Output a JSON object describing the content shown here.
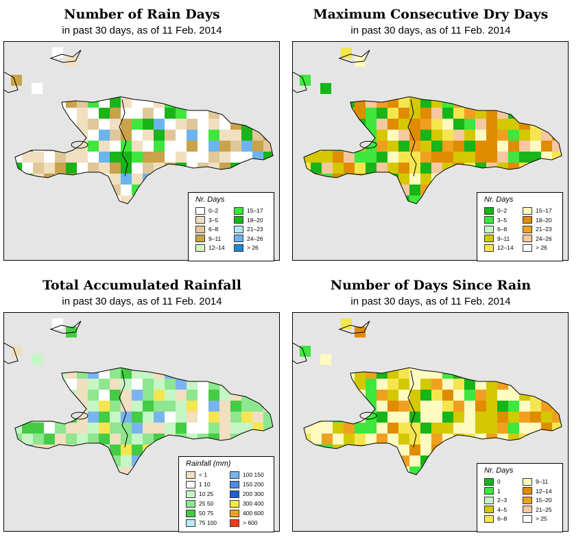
{
  "panels": [
    {
      "id": "rain-days",
      "title": "Number of Rain Days",
      "subtitle": "in past 30 days, as of  11 Feb. 2014",
      "legend": {
        "title": "Nr. Days",
        "items": [
          {
            "label": "0–2",
            "color": "#ffffff"
          },
          {
            "label": "3–5",
            "color": "#f0dfc0"
          },
          {
            "label": "6–8",
            "color": "#e0c79a"
          },
          {
            "label": "9–11",
            "color": "#c9a24a"
          },
          {
            "label": "12–14",
            "color": "#d6f5c6"
          },
          {
            "label": "15–17",
            "color": "#3ee63e"
          },
          {
            "label": "18–20",
            "color": "#18b418"
          },
          {
            "label": "21–23",
            "color": "#b0e6f5"
          },
          {
            "label": "24–26",
            "color": "#6cb4ee"
          },
          {
            "label": "> 26",
            "color": "#2288cc"
          }
        ]
      }
    },
    {
      "id": "dry-days",
      "title": "Maximum Consecutive Dry Days",
      "subtitle": "in past 30 days, as of  11 Feb. 2014",
      "legend": {
        "title": "Nr. Days",
        "items": [
          {
            "label": "0–2",
            "color": "#18b418"
          },
          {
            "label": "3–5",
            "color": "#3ee63e"
          },
          {
            "label": "6–8",
            "color": "#c6f5c6"
          },
          {
            "label": "9–11",
            "color": "#d4c800"
          },
          {
            "label": "12–14",
            "color": "#f5e650"
          },
          {
            "label": "15–17",
            "color": "#fffac0"
          },
          {
            "label": "18–20",
            "color": "#e08c00"
          },
          {
            "label": "21–23",
            "color": "#f0a020"
          },
          {
            "label": "24–26",
            "color": "#f5c8a0"
          },
          {
            "label": "> 26",
            "color": "#ffffff"
          }
        ]
      }
    },
    {
      "id": "rainfall",
      "title": "Total Accumulated Rainfall",
      "subtitle": "in past 30 days, as of  11 Feb. 2014",
      "legend": {
        "title": "Rainfall (mm)",
        "items": [
          {
            "label": "< 1",
            "color": "#f0dfc0"
          },
          {
            "label": "1    10",
            "color": "#ffffff"
          },
          {
            "label": "10    25",
            "color": "#c6f5c6"
          },
          {
            "label": "25    50",
            "color": "#8ee68e"
          },
          {
            "label": "50    75",
            "color": "#44cc44"
          },
          {
            "label": "75  100",
            "color": "#b8ecf5"
          },
          {
            "label": "100  150",
            "color": "#7ab4ee"
          },
          {
            "label": "150  200",
            "color": "#4a8ce6"
          },
          {
            "label": "200  300",
            "color": "#1f5fd0"
          },
          {
            "label": "300  400",
            "color": "#f5e650"
          },
          {
            "label": "400  600",
            "color": "#f0a020"
          },
          {
            "label": "> 600",
            "color": "#f03c14"
          }
        ]
      }
    },
    {
      "id": "since-rain",
      "title": "Number of Days Since Rain",
      "subtitle": "in past 30 days, as of  11 Feb. 2014",
      "legend": {
        "title": "Nr. Days",
        "items": [
          {
            "label": "0",
            "color": "#18b418"
          },
          {
            "label": "1",
            "color": "#3ee63e"
          },
          {
            "label": "2–3",
            "color": "#c6f5c6"
          },
          {
            "label": "4–5",
            "color": "#d4c800"
          },
          {
            "label": "6–8",
            "color": "#f5e650"
          },
          {
            "label": "9–11",
            "color": "#fffac0"
          },
          {
            "label": "12–14",
            "color": "#e08c00"
          },
          {
            "label": "15–20",
            "color": "#f0a020"
          },
          {
            "label": "21–25",
            "color": "#f5c8a0"
          },
          {
            "label": "> 25",
            "color": "#ffffff"
          }
        ]
      }
    }
  ]
}
